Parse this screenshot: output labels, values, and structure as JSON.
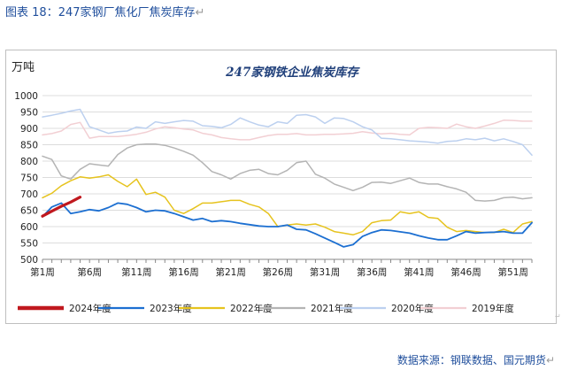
{
  "caption": {
    "prefix": "图表 18：",
    "text": "247家钢厂焦化厂焦炭库存",
    "mark": "↵"
  },
  "source_note": "数据来源：钢联数据、国元期货",
  "source_mark": "↵",
  "side_mark": "↵",
  "chart_data": {
    "type": "line",
    "title": "247家钢铁企业焦炭库存",
    "unit_label": "万吨",
    "ylim": [
      500,
      1000
    ],
    "yticks": [
      500,
      550,
      600,
      650,
      700,
      750,
      800,
      850,
      900,
      950,
      1000
    ],
    "xlim": [
      1,
      53
    ],
    "xticks": [
      {
        "week": 1,
        "label": "第1周"
      },
      {
        "week": 6,
        "label": "第6周"
      },
      {
        "week": 11,
        "label": "第11周"
      },
      {
        "week": 16,
        "label": "第16周"
      },
      {
        "week": 21,
        "label": "第21周"
      },
      {
        "week": 26,
        "label": "第26周"
      },
      {
        "week": 31,
        "label": "第31周"
      },
      {
        "week": 36,
        "label": "第36周"
      },
      {
        "week": 41,
        "label": "第41周"
      },
      {
        "week": 46,
        "label": "第46周"
      },
      {
        "week": 51,
        "label": "第51周"
      }
    ],
    "grid": "horizontal",
    "legend_position": "bottom",
    "series": [
      {
        "name": "2019年度",
        "color": "#f2cfd3",
        "width": 1.5,
        "values": [
          880,
          884,
          892,
          912,
          918,
          870,
          875,
          875,
          875,
          878,
          882,
          888,
          898,
          905,
          902,
          898,
          895,
          885,
          880,
          872,
          868,
          865,
          865,
          872,
          878,
          882,
          882,
          884,
          880,
          880,
          882,
          882,
          883,
          885,
          890,
          886,
          883,
          885,
          882,
          880,
          900,
          903,
          902,
          900,
          913,
          905,
          900,
          907,
          915,
          925,
          924,
          922,
          922
        ]
      },
      {
        "name": "2020年度",
        "color": "#bcd0ef",
        "width": 1.5,
        "values": [
          935,
          940,
          946,
          953,
          958,
          905,
          895,
          885,
          890,
          892,
          904,
          900,
          920,
          915,
          920,
          924,
          922,
          908,
          906,
          902,
          912,
          932,
          920,
          910,
          905,
          920,
          915,
          940,
          942,
          935,
          915,
          932,
          930,
          920,
          905,
          895,
          870,
          868,
          865,
          862,
          860,
          858,
          855,
          860,
          862,
          868,
          865,
          870,
          862,
          868,
          860,
          850,
          818
        ]
      },
      {
        "name": "2021年度",
        "color": "#b4b4b4",
        "width": 1.5,
        "values": [
          815,
          805,
          755,
          745,
          775,
          792,
          788,
          785,
          820,
          840,
          850,
          852,
          852,
          848,
          840,
          830,
          818,
          795,
          768,
          758,
          745,
          762,
          772,
          775,
          762,
          758,
          772,
          795,
          800,
          760,
          748,
          730,
          720,
          710,
          720,
          735,
          736,
          732,
          740,
          748,
          735,
          730,
          730,
          722,
          715,
          705,
          680,
          678,
          680,
          688,
          690,
          685,
          688
        ]
      },
      {
        "name": "2022年度",
        "color": "#e6c31e",
        "width": 1.5,
        "values": [
          688,
          702,
          725,
          740,
          752,
          748,
          752,
          758,
          738,
          722,
          745,
          698,
          705,
          690,
          650,
          640,
          655,
          672,
          672,
          676,
          680,
          680,
          668,
          660,
          640,
          600,
          605,
          608,
          605,
          608,
          598,
          585,
          580,
          575,
          585,
          612,
          618,
          620,
          645,
          640,
          645,
          628,
          625,
          598,
          585,
          588,
          585,
          582,
          582,
          592,
          582,
          608,
          615
        ]
      },
      {
        "name": "2023年度",
        "color": "#1c6fd1",
        "width": 1.8,
        "values": [
          630,
          660,
          672,
          640,
          645,
          652,
          648,
          658,
          672,
          668,
          658,
          645,
          650,
          648,
          640,
          630,
          620,
          625,
          615,
          618,
          615,
          610,
          606,
          602,
          600,
          600,
          605,
          592,
          590,
          578,
          565,
          552,
          538,
          545,
          570,
          582,
          590,
          588,
          584,
          580,
          572,
          565,
          560,
          560,
          572,
          585,
          580,
          582,
          583,
          585,
          580,
          580,
          612
        ]
      },
      {
        "name": "2024年度",
        "color": "#c0181e",
        "width": 3.2,
        "values": [
          632,
          647,
          662,
          675,
          690
        ]
      }
    ]
  }
}
